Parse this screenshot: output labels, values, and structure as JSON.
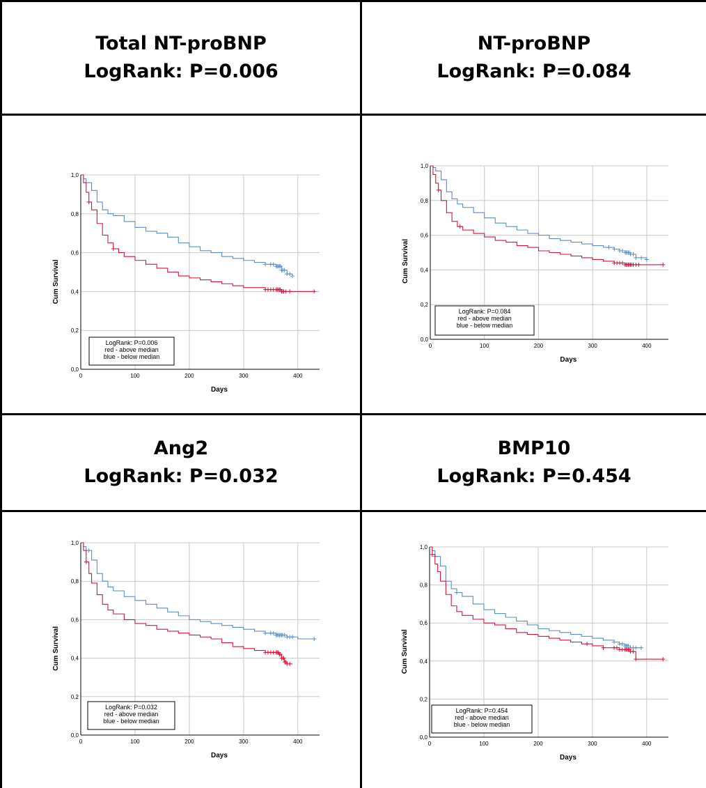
{
  "panels": [
    {
      "heading": [
        "Total NT-proBNP",
        "LogRank: P=0.006"
      ],
      "legend": [
        "LogRank: P=0.006",
        "red - above median",
        "blue - below median"
      ]
    },
    {
      "heading": [
        "NT-proBNP",
        "LogRank: P=0.084"
      ],
      "legend": [
        "LogRank: P=0.084",
        "red - above median",
        "blue - below median"
      ]
    },
    {
      "heading": [
        "Ang2",
        "LogRank: P=0.032"
      ],
      "legend": [
        "LogRank: P=0.032",
        "red - above median",
        "blue - below median"
      ]
    },
    {
      "heading": [
        "BMP10",
        "LogRank: P=0.454"
      ],
      "legend": [
        "LogRank: P=0.454",
        "red - above median",
        "blue - below median"
      ]
    }
  ],
  "colors": {
    "red": "#d2143c",
    "blue": "#5b8cc8",
    "grid": "#c8c8c8"
  },
  "chart_data": [
    {
      "type": "line",
      "xlabel": "Days",
      "ylabel": "Cum Survival",
      "xlim": [
        0,
        440
      ],
      "ylim": [
        0,
        1.0
      ],
      "xticks": [
        "0",
        "100",
        "200",
        "300",
        "400"
      ],
      "yticks": [
        "0,0",
        "0,2",
        "0,4",
        "0,6",
        "0,8",
        "1,0"
      ],
      "grid": true,
      "legend_position": "bottom-left",
      "series": [
        {
          "name": "red - above median",
          "color": "#d2143c",
          "x": [
            0,
            5,
            10,
            15,
            20,
            30,
            40,
            50,
            60,
            70,
            80,
            100,
            120,
            140,
            160,
            180,
            200,
            220,
            240,
            260,
            280,
            300,
            320,
            340,
            350,
            360,
            370,
            380,
            400,
            430
          ],
          "y": [
            1.0,
            0.96,
            0.91,
            0.86,
            0.82,
            0.75,
            0.69,
            0.65,
            0.62,
            0.6,
            0.58,
            0.56,
            0.54,
            0.52,
            0.5,
            0.48,
            0.47,
            0.46,
            0.45,
            0.44,
            0.43,
            0.42,
            0.42,
            0.41,
            0.41,
            0.41,
            0.4,
            0.4,
            0.4,
            0.4
          ],
          "censor_x": [
            15,
            60,
            340,
            345,
            350,
            355,
            360,
            362,
            364,
            366,
            368,
            370,
            372,
            374,
            378,
            385,
            430
          ]
        },
        {
          "name": "blue - below median",
          "color": "#5b8cc8",
          "x": [
            0,
            5,
            10,
            20,
            30,
            40,
            50,
            60,
            80,
            100,
            120,
            140,
            160,
            180,
            200,
            220,
            240,
            260,
            280,
            300,
            320,
            340,
            350,
            360,
            370,
            380,
            390
          ],
          "y": [
            1.0,
            0.98,
            0.96,
            0.92,
            0.86,
            0.82,
            0.8,
            0.79,
            0.76,
            0.73,
            0.71,
            0.7,
            0.68,
            0.65,
            0.63,
            0.61,
            0.6,
            0.58,
            0.57,
            0.56,
            0.55,
            0.54,
            0.54,
            0.53,
            0.51,
            0.49,
            0.48
          ],
          "censor_x": [
            340,
            350,
            355,
            360,
            362,
            364,
            366,
            368,
            370,
            372,
            375,
            380,
            385,
            390
          ]
        }
      ]
    },
    {
      "type": "line",
      "xlabel": "Days",
      "ylabel": "Cum Survival",
      "xlim": [
        0,
        440
      ],
      "ylim": [
        0,
        1.0
      ],
      "xticks": [
        "0",
        "100",
        "200",
        "300",
        "400"
      ],
      "yticks": [
        "0,0",
        "0,2",
        "0,4",
        "0,6",
        "0,8",
        "1,0"
      ],
      "grid": true,
      "legend_position": "bottom-left",
      "series": [
        {
          "name": "red - above median",
          "color": "#d2143c",
          "x": [
            0,
            5,
            10,
            15,
            20,
            30,
            40,
            50,
            60,
            80,
            100,
            120,
            140,
            160,
            180,
            200,
            220,
            240,
            260,
            280,
            300,
            320,
            340,
            360,
            380,
            400,
            430
          ],
          "y": [
            1.0,
            0.95,
            0.9,
            0.86,
            0.8,
            0.73,
            0.68,
            0.65,
            0.63,
            0.61,
            0.59,
            0.57,
            0.56,
            0.54,
            0.53,
            0.51,
            0.5,
            0.49,
            0.48,
            0.47,
            0.46,
            0.45,
            0.44,
            0.43,
            0.43,
            0.43,
            0.43
          ],
          "censor_x": [
            15,
            55,
            340,
            345,
            350,
            355,
            360,
            362,
            364,
            366,
            368,
            370,
            372,
            375,
            380,
            385,
            430
          ]
        },
        {
          "name": "blue - below median",
          "color": "#5b8cc8",
          "x": [
            0,
            5,
            10,
            20,
            30,
            40,
            50,
            60,
            80,
            100,
            120,
            140,
            160,
            180,
            200,
            220,
            240,
            260,
            280,
            300,
            320,
            340,
            350,
            360,
            370,
            380,
            400
          ],
          "y": [
            1.0,
            0.99,
            0.97,
            0.92,
            0.85,
            0.81,
            0.78,
            0.76,
            0.73,
            0.7,
            0.67,
            0.65,
            0.63,
            0.61,
            0.6,
            0.58,
            0.57,
            0.56,
            0.55,
            0.54,
            0.53,
            0.52,
            0.51,
            0.5,
            0.49,
            0.47,
            0.46
          ],
          "censor_x": [
            330,
            340,
            350,
            355,
            360,
            362,
            364,
            366,
            368,
            370,
            375,
            380,
            390,
            400
          ]
        }
      ]
    },
    {
      "type": "line",
      "xlabel": "Days",
      "ylabel": "Cum Survival",
      "xlim": [
        0,
        440
      ],
      "ylim": [
        0,
        1.0
      ],
      "xticks": [
        "0",
        "100",
        "200",
        "300",
        "400"
      ],
      "yticks": [
        "0,0",
        "0,2",
        "0,4",
        "0,6",
        "0,8",
        "1,0"
      ],
      "grid": true,
      "legend_position": "bottom-left",
      "series": [
        {
          "name": "red - above median",
          "color": "#d2143c",
          "x": [
            0,
            5,
            10,
            15,
            20,
            30,
            40,
            50,
            60,
            80,
            100,
            120,
            140,
            160,
            180,
            200,
            220,
            240,
            260,
            280,
            300,
            320,
            340,
            350,
            360,
            365,
            370,
            375,
            380,
            390
          ],
          "y": [
            1.0,
            0.96,
            0.9,
            0.84,
            0.79,
            0.73,
            0.68,
            0.65,
            0.63,
            0.6,
            0.58,
            0.57,
            0.55,
            0.54,
            0.53,
            0.52,
            0.51,
            0.5,
            0.48,
            0.46,
            0.45,
            0.44,
            0.43,
            0.43,
            0.43,
            0.42,
            0.4,
            0.38,
            0.37,
            0.37
          ],
          "censor_x": [
            10,
            340,
            345,
            350,
            355,
            360,
            362,
            364,
            366,
            368,
            370,
            372,
            374,
            376,
            378,
            380,
            385
          ]
        },
        {
          "name": "blue - below median",
          "color": "#5b8cc8",
          "x": [
            0,
            5,
            10,
            20,
            30,
            40,
            50,
            60,
            80,
            100,
            120,
            140,
            160,
            180,
            200,
            220,
            240,
            260,
            280,
            300,
            320,
            340,
            360,
            380,
            400,
            430
          ],
          "y": [
            1.0,
            0.98,
            0.96,
            0.91,
            0.84,
            0.8,
            0.77,
            0.75,
            0.72,
            0.7,
            0.68,
            0.66,
            0.64,
            0.62,
            0.6,
            0.59,
            0.58,
            0.57,
            0.56,
            0.55,
            0.54,
            0.53,
            0.52,
            0.51,
            0.5,
            0.5
          ],
          "censor_x": [
            15,
            340,
            350,
            355,
            360,
            362,
            364,
            366,
            368,
            370,
            372,
            375,
            380,
            385,
            390,
            430
          ]
        }
      ]
    },
    {
      "type": "line",
      "xlabel": "Days",
      "ylabel": "Cum Survival",
      "xlim": [
        0,
        440
      ],
      "ylim": [
        0,
        1.0
      ],
      "xticks": [
        "0",
        "100",
        "200",
        "300",
        "400"
      ],
      "yticks": [
        "0,0",
        "0,2",
        "0,4",
        "0,6",
        "0,8",
        "1,0"
      ],
      "grid": true,
      "legend_position": "bottom-left",
      "series": [
        {
          "name": "red - above median",
          "color": "#d2143c",
          "x": [
            0,
            5,
            10,
            15,
            20,
            30,
            40,
            50,
            60,
            80,
            100,
            120,
            140,
            160,
            180,
            200,
            220,
            240,
            260,
            280,
            300,
            320,
            340,
            350,
            360,
            370,
            380,
            400,
            430
          ],
          "y": [
            1.0,
            0.96,
            0.91,
            0.87,
            0.82,
            0.75,
            0.69,
            0.66,
            0.64,
            0.62,
            0.6,
            0.59,
            0.57,
            0.55,
            0.54,
            0.53,
            0.52,
            0.51,
            0.5,
            0.49,
            0.48,
            0.47,
            0.47,
            0.46,
            0.46,
            0.45,
            0.41,
            0.41,
            0.41
          ],
          "censor_x": [
            5,
            290,
            320,
            340,
            345,
            350,
            355,
            360,
            362,
            364,
            366,
            368,
            370,
            375,
            380,
            430
          ]
        },
        {
          "name": "blue - below median",
          "color": "#5b8cc8",
          "x": [
            0,
            5,
            10,
            20,
            30,
            40,
            50,
            60,
            80,
            100,
            120,
            140,
            160,
            180,
            200,
            220,
            240,
            260,
            280,
            300,
            320,
            340,
            350,
            360,
            370,
            380,
            390
          ],
          "y": [
            1.0,
            0.98,
            0.95,
            0.9,
            0.82,
            0.78,
            0.76,
            0.74,
            0.7,
            0.67,
            0.65,
            0.63,
            0.61,
            0.59,
            0.57,
            0.56,
            0.55,
            0.54,
            0.53,
            0.52,
            0.51,
            0.5,
            0.49,
            0.48,
            0.47,
            0.47,
            0.47
          ],
          "censor_x": [
            10,
            50,
            340,
            350,
            355,
            360,
            362,
            364,
            366,
            370,
            375,
            380,
            390
          ]
        }
      ]
    }
  ]
}
